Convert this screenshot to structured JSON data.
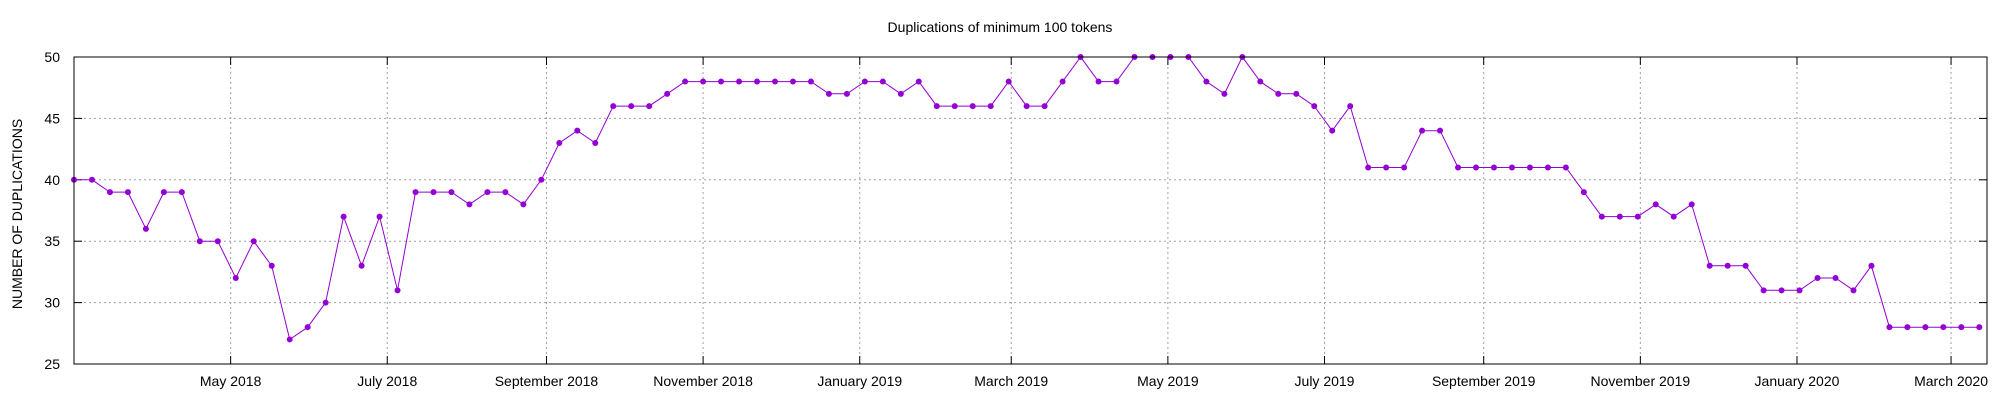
{
  "chart_data": {
    "type": "line",
    "title": "Duplications of minimum 100 tokens",
    "xlabel": "",
    "ylabel": "NUMBER OF DUPLICATIONS",
    "ylim": [
      25,
      50
    ],
    "yticks": [
      25,
      30,
      35,
      40,
      45,
      50
    ],
    "xlim": [
      "2018-03-01",
      "2020-03-15"
    ],
    "xticks": [
      {
        "date": "2018-05-01",
        "label": "May 2018"
      },
      {
        "date": "2018-07-01",
        "label": "July 2018"
      },
      {
        "date": "2018-09-01",
        "label": "September 2018"
      },
      {
        "date": "2018-11-01",
        "label": "November 2018"
      },
      {
        "date": "2019-01-01",
        "label": "January 2019"
      },
      {
        "date": "2019-03-01",
        "label": "March 2019"
      },
      {
        "date": "2019-05-01",
        "label": "May 2019"
      },
      {
        "date": "2019-07-01",
        "label": "July 2019"
      },
      {
        "date": "2019-09-01",
        "label": "September 2019"
      },
      {
        "date": "2019-11-01",
        "label": "November 2019"
      },
      {
        "date": "2020-01-01",
        "label": "January 2020"
      },
      {
        "date": "2020-03-01",
        "label": "March 2020"
      }
    ],
    "grid": true,
    "color": "#9400d3",
    "series": [
      {
        "x": [
          "2018-03-01",
          "2018-03-08",
          "2018-03-15",
          "2018-03-22",
          "2018-03-29",
          "2018-04-05",
          "2018-04-12",
          "2018-04-19",
          "2018-04-26",
          "2018-05-03",
          "2018-05-10",
          "2018-05-17",
          "2018-05-24",
          "2018-05-31",
          "2018-06-07",
          "2018-06-14",
          "2018-06-21",
          "2018-06-28",
          "2018-07-05",
          "2018-07-12",
          "2018-07-19",
          "2018-07-26",
          "2018-08-02",
          "2018-08-09",
          "2018-08-16",
          "2018-08-23",
          "2018-08-30",
          "2018-09-06",
          "2018-09-13",
          "2018-09-20",
          "2018-09-27",
          "2018-10-04",
          "2018-10-11",
          "2018-10-18",
          "2018-10-25",
          "2018-11-01",
          "2018-11-08",
          "2018-11-15",
          "2018-11-22",
          "2018-11-29",
          "2018-12-06",
          "2018-12-13",
          "2018-12-20",
          "2018-12-27",
          "2019-01-03",
          "2019-01-10",
          "2019-01-17",
          "2019-01-24",
          "2019-01-31",
          "2019-02-07",
          "2019-02-14",
          "2019-02-21",
          "2019-02-28",
          "2019-03-07",
          "2019-03-14",
          "2019-03-21",
          "2019-03-28",
          "2019-04-04",
          "2019-04-11",
          "2019-04-18",
          "2019-04-25",
          "2019-05-02",
          "2019-05-09",
          "2019-05-16",
          "2019-05-23",
          "2019-05-30",
          "2019-06-06",
          "2019-06-13",
          "2019-06-20",
          "2019-06-27",
          "2019-07-04",
          "2019-07-11",
          "2019-07-18",
          "2019-07-25",
          "2019-08-01",
          "2019-08-08",
          "2019-08-15",
          "2019-08-22",
          "2019-08-29",
          "2019-09-05",
          "2019-09-12",
          "2019-09-19",
          "2019-09-26",
          "2019-10-03",
          "2019-10-10",
          "2019-10-17",
          "2019-10-24",
          "2019-10-31",
          "2019-11-07",
          "2019-11-14",
          "2019-11-21",
          "2019-11-28",
          "2019-12-05",
          "2019-12-12",
          "2019-12-19",
          "2019-12-26",
          "2020-01-02",
          "2020-01-09",
          "2020-01-16",
          "2020-01-23",
          "2020-01-30",
          "2020-02-06",
          "2020-02-13",
          "2020-02-20",
          "2020-02-27",
          "2020-03-05",
          "2020-03-12"
        ],
        "y": [
          40,
          40,
          39,
          39,
          36,
          39,
          39,
          35,
          35,
          32,
          35,
          33,
          27,
          28,
          30,
          37,
          33,
          37,
          31,
          39,
          39,
          39,
          38,
          39,
          39,
          38,
          40,
          43,
          44,
          43,
          46,
          46,
          46,
          47,
          48,
          48,
          48,
          48,
          48,
          48,
          48,
          48,
          47,
          47,
          48,
          48,
          47,
          48,
          46,
          46,
          46,
          46,
          48,
          46,
          46,
          48,
          50,
          48,
          48,
          50,
          50,
          50,
          50,
          48,
          47,
          50,
          48,
          47,
          47,
          46,
          44,
          46,
          41,
          41,
          41,
          44,
          44,
          41,
          41,
          41,
          41,
          41,
          41,
          41,
          39,
          37,
          37,
          37,
          38,
          37,
          38,
          33,
          33,
          33,
          31,
          31,
          31,
          32,
          32,
          31,
          33,
          28,
          28,
          28,
          28,
          28,
          28
        ]
      }
    ]
  }
}
